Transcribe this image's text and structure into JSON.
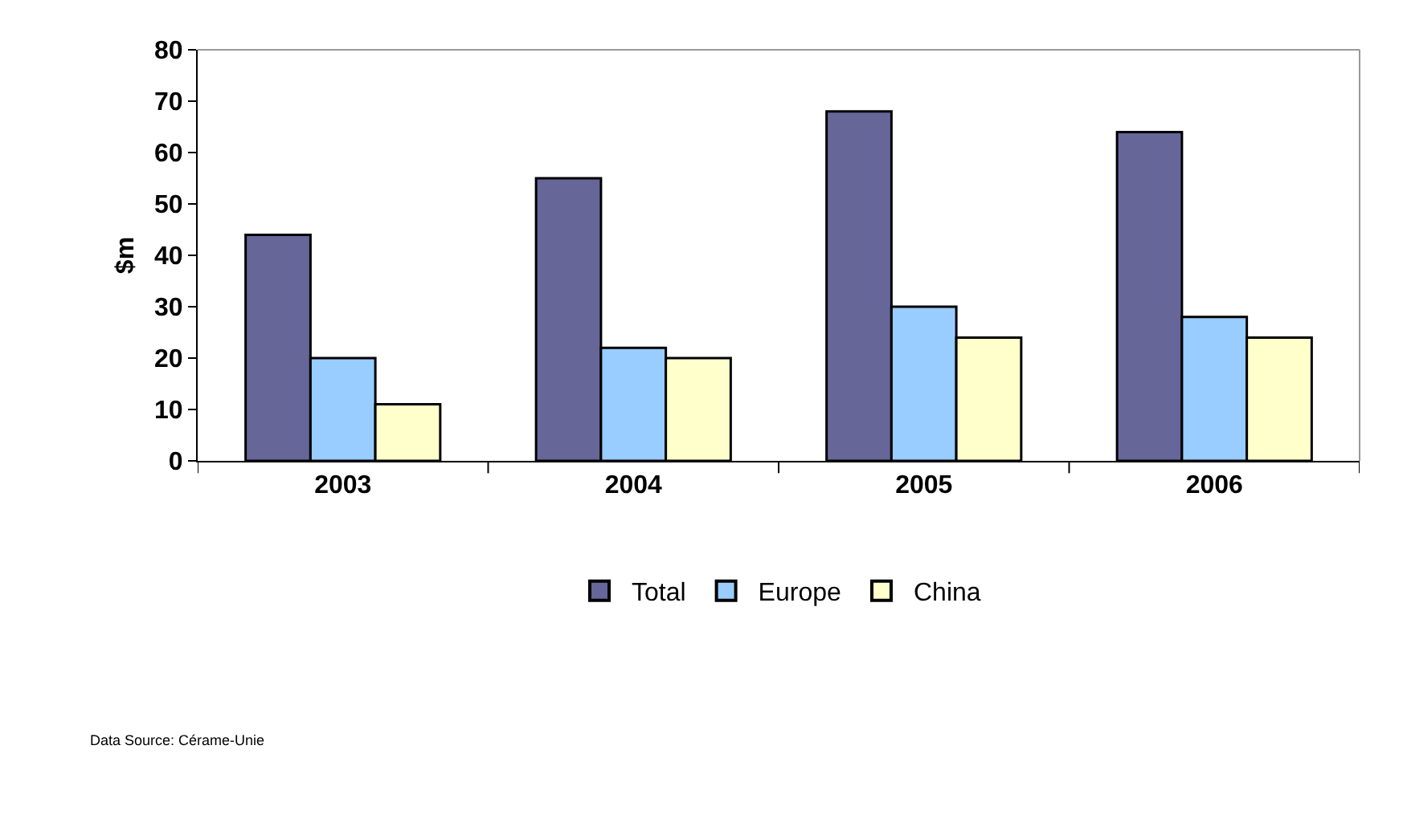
{
  "chart_data": {
    "type": "bar",
    "ylabel": "$m",
    "categories": [
      "2003",
      "2004",
      "2005",
      "2006"
    ],
    "series": [
      {
        "name": "Total",
        "color": "#666699",
        "values": [
          44,
          55,
          68,
          64
        ]
      },
      {
        "name": "Europe",
        "color": "#99ccff",
        "values": [
          20,
          22,
          30,
          28
        ]
      },
      {
        "name": "China",
        "color": "#ffffcc",
        "values": [
          11,
          20,
          24,
          24
        ]
      }
    ],
    "ylim": [
      0,
      80
    ],
    "yticks": [
      0,
      10,
      20,
      30,
      40,
      50,
      60,
      70,
      80
    ],
    "legend": "bottom",
    "annotations": [
      "Data Source: Cérame-Unie"
    ]
  }
}
